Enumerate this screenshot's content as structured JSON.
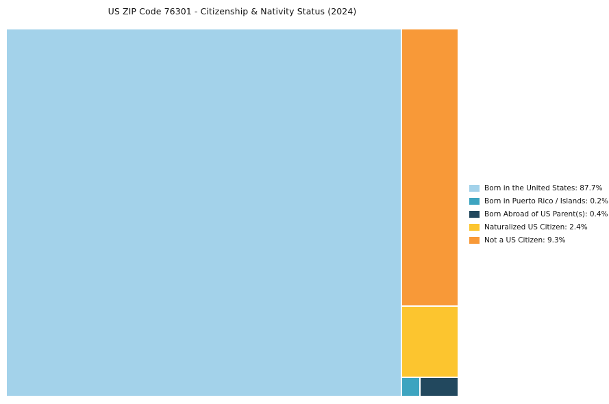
{
  "chart_data": {
    "type": "treemap",
    "title": "US ZIP Code 76301 - Citizenship & Nativity Status (2024)",
    "legend_position": "right",
    "background_color": "#ffffff",
    "total": 100,
    "segments": [
      {
        "id": "born-in-us",
        "label": "Born in the United States",
        "value": 87.7,
        "color": "#A3D2EA"
      },
      {
        "id": "born-puerto-rico",
        "label": "Born in Puerto Rico / Islands",
        "value": 0.2,
        "color": "#3DA4C0"
      },
      {
        "id": "born-abroad",
        "label": "Born Abroad of US Parent(s)",
        "value": 0.4,
        "color": "#22485E"
      },
      {
        "id": "naturalized",
        "label": "Naturalized US Citizen",
        "value": 2.4,
        "color": "#FCC52F"
      },
      {
        "id": "not-citizen",
        "label": "Not a US Citizen",
        "value": 9.3,
        "color": "#F89938"
      }
    ]
  }
}
